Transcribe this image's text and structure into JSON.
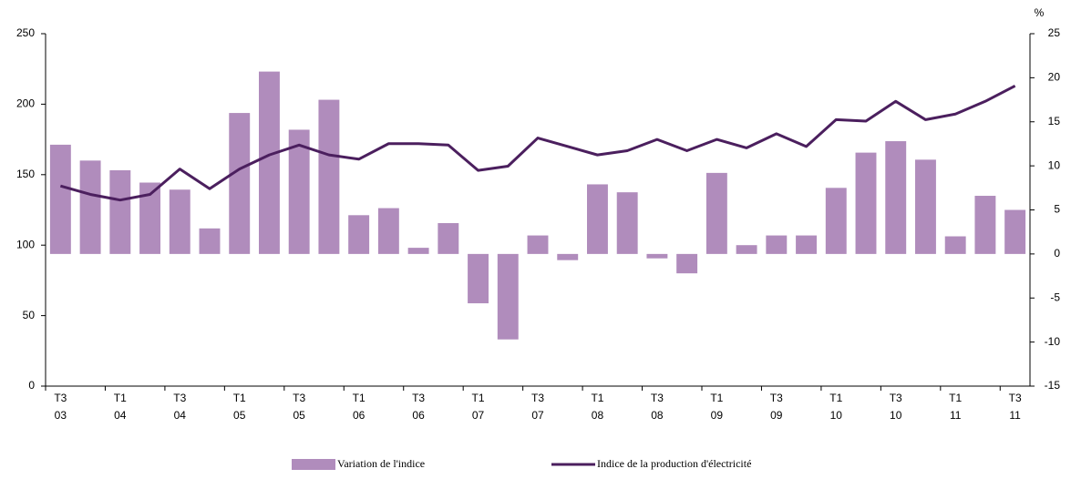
{
  "chart_data": {
    "type": "bar-line",
    "categories": [
      "T3 03",
      null,
      "T1 04",
      null,
      "T3 04",
      null,
      "T1 05",
      null,
      "T3 05",
      null,
      "T1 06",
      null,
      "T3 06",
      null,
      "T1 07",
      null,
      "T3 07",
      null,
      "T1 08",
      null,
      "T3 08",
      null,
      "T1 09",
      null,
      "T3 09",
      null,
      "T1 10",
      null,
      "T3 10",
      null,
      "T1 11",
      null,
      "T3 11"
    ],
    "series": [
      {
        "name": "Variation de l'indice",
        "color": "#b08cbc",
        "axis": "y2",
        "kind": "bar",
        "values": [
          12.4,
          10.6,
          9.5,
          8.1,
          7.3,
          2.9,
          16.0,
          20.7,
          14.1,
          17.5,
          4.4,
          5.2,
          0.7,
          3.5,
          -5.6,
          -9.7,
          2.1,
          -0.7,
          7.9,
          7.0,
          -0.5,
          -2.2,
          9.2,
          1.0,
          2.1,
          2.1,
          7.5,
          11.5,
          12.8,
          10.7,
          2.0,
          6.6,
          5.0
        ]
      },
      {
        "name": "Indice de la production d'électricité",
        "color": "#4b1f5e",
        "kind": "line",
        "values": [
          142,
          136,
          132,
          136,
          154,
          140,
          154,
          164,
          171,
          164,
          161,
          172,
          172,
          171,
          153,
          156,
          176,
          170,
          164,
          167,
          175,
          167,
          175,
          169,
          179,
          170,
          189,
          188,
          202,
          189,
          193,
          202,
          213
        ]
      }
    ],
    "ylim": [
      0,
      250
    ],
    "yticks": [
      0,
      50,
      100,
      150,
      200,
      250
    ],
    "y2lim": [
      -15,
      25
    ],
    "y2ticks": [
      -15,
      -10,
      -5,
      0,
      5,
      10,
      15,
      20,
      25
    ],
    "y2_label": "%",
    "legend": "bottom"
  }
}
